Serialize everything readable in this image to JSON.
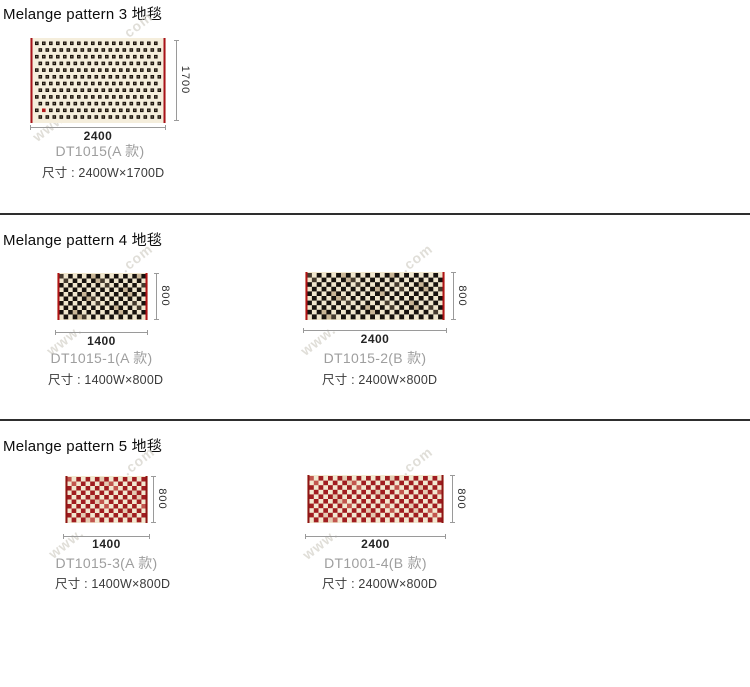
{
  "sections": [
    {
      "title": "Melange pattern 3 地毯",
      "cards": [
        {
          "model": "DT1015(A 款)",
          "size_label": "尺寸 : 2400W×1700D",
          "width_dim": "2400",
          "height_dim": "1700",
          "carpet": {
            "pattern": "offset-squares",
            "colors": {
              "bg": "#f5eedc",
              "fg": "#1a130c",
              "fg_center": "#877a69",
              "accent": "#b2181c",
              "edge": "#a8121a"
            }
          }
        }
      ]
    },
    {
      "title": "Melange pattern 4 地毯",
      "cards": [
        {
          "model": "DT1015-1(A 款)",
          "size_label": "尺寸 : 1400W×800D",
          "width_dim": "1400",
          "height_dim": "800",
          "carpet": {
            "pattern": "checker",
            "colors": {
              "bg": "#f0e6cd",
              "dark": "#17120e",
              "dark_alt": "#443a2e",
              "light": "#f0e6cd",
              "light_alt": "#c9b697",
              "edge": "#b01217"
            }
          }
        },
        {
          "model": "DT1015-2(B 款)",
          "size_label": "尺寸 : 2400W×800D",
          "width_dim": "2400",
          "height_dim": "800",
          "carpet": {
            "pattern": "checker",
            "colors": {
              "bg": "#f0e6cd",
              "dark": "#17120e",
              "dark_alt": "#443a2e",
              "light": "#f0e6cd",
              "light_alt": "#c9b697",
              "edge": "#b01217"
            }
          }
        }
      ]
    },
    {
      "title": "Melange pattern 5 地毯",
      "cards": [
        {
          "model": "DT1015-3(A 款)",
          "size_label": "尺寸 : 1400W×800D",
          "width_dim": "1400",
          "height_dim": "800",
          "carpet": {
            "pattern": "checker",
            "colors": {
              "bg": "#f2e8d0",
              "dark": "#a01d20",
              "dark_alt": "#c2564e",
              "light": "#f2e8d0",
              "light_alt": "#e4cbb2",
              "edge": "#8f1416"
            }
          }
        },
        {
          "model": "DT1001-4(B 款)",
          "size_label": "尺寸 : 2400W×800D",
          "width_dim": "2400",
          "height_dim": "800",
          "carpet": {
            "pattern": "checker",
            "colors": {
              "bg": "#f2e8d0",
              "dark": "#a01d20",
              "dark_alt": "#c2564e",
              "light": "#f2e8d0",
              "light_alt": "#e4cbb2",
              "edge": "#8f1416"
            }
          }
        }
      ]
    }
  ],
  "watermark": {
    "prefix": "www.",
    "suffix": ".com"
  }
}
